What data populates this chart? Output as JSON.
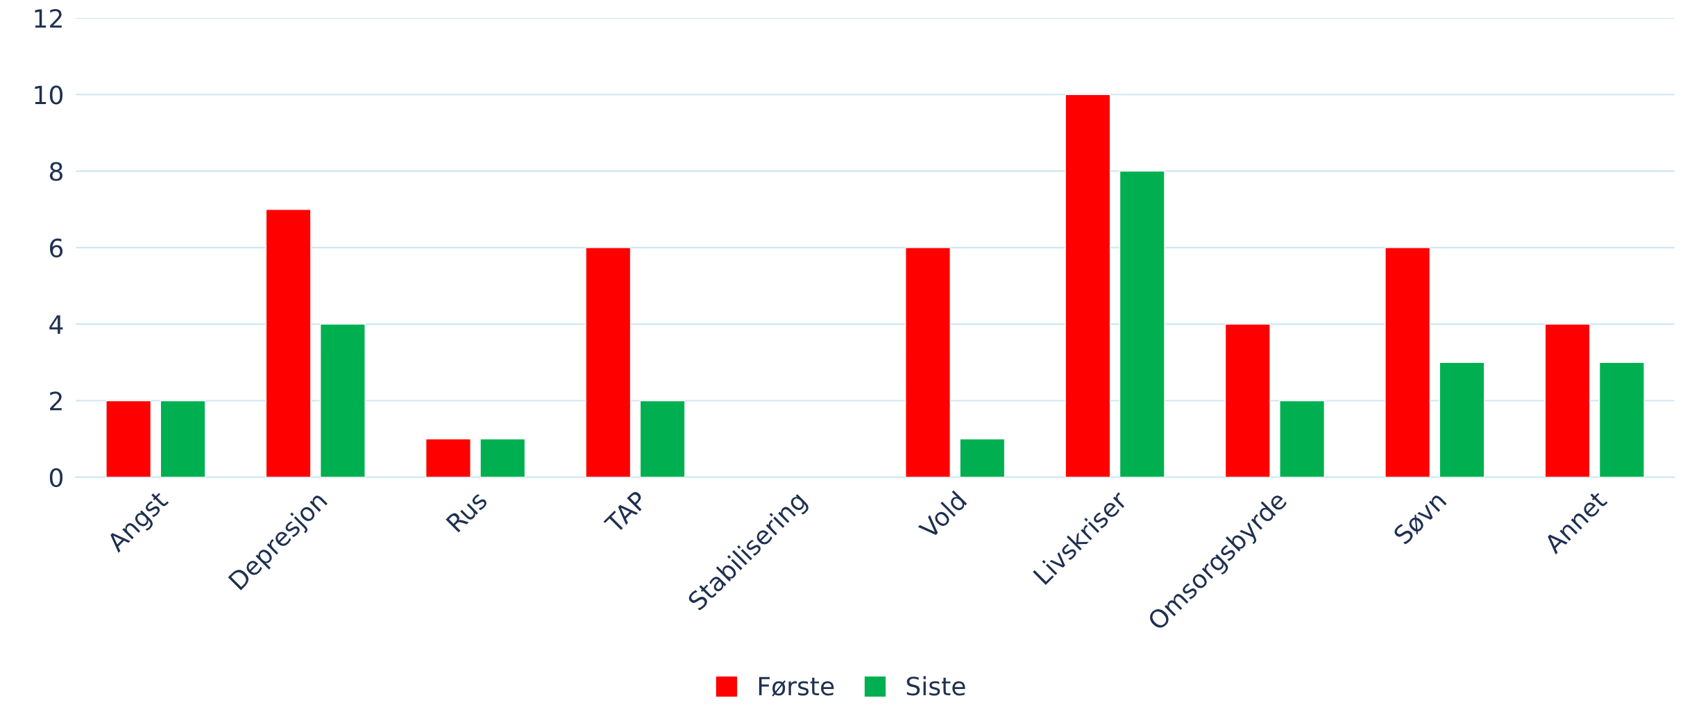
{
  "chart_data": {
    "type": "bar",
    "categories": [
      "Angst",
      "Depresjon",
      "Rus",
      "TAP",
      "Stabilisering",
      "Vold",
      "Livskriser",
      "Omsorgsbyrde",
      "Søvn",
      "Annet"
    ],
    "series": [
      {
        "name": "Første",
        "color": "#ff0000",
        "values": [
          2,
          7,
          1,
          6,
          0,
          6,
          10,
          4,
          6,
          4
        ]
      },
      {
        "name": "Siste",
        "color": "#00b050",
        "values": [
          2,
          4,
          1,
          2,
          0,
          1,
          8,
          2,
          3,
          3
        ]
      }
    ],
    "ylim": [
      0,
      12
    ],
    "yticks": [
      0,
      2,
      4,
      6,
      8,
      10,
      12
    ],
    "grid": "y",
    "legend": "bottom"
  }
}
